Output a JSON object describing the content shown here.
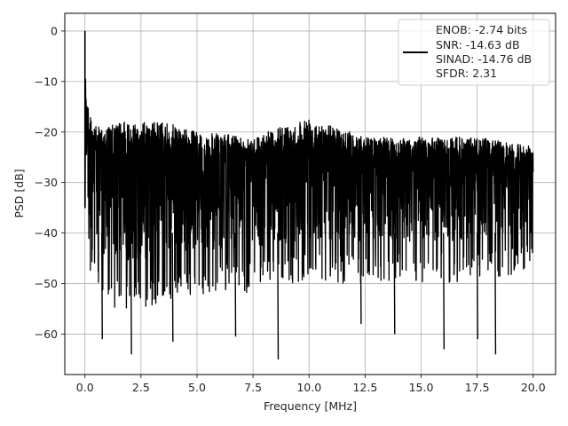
{
  "chart_data": {
    "type": "line",
    "title": "",
    "xlabel": "Frequency [MHz]",
    "ylabel": "PSD [dB]",
    "xlim": [
      -0.9,
      21.0
    ],
    "ylim": [
      -68,
      3.5
    ],
    "xticks": [
      0.0,
      2.5,
      5.0,
      7.5,
      10.0,
      12.5,
      15.0,
      17.5,
      20.0
    ],
    "xtick_labels": [
      "0.0",
      "2.5",
      "5.0",
      "7.5",
      "10.0",
      "12.5",
      "15.0",
      "17.5",
      "20.0"
    ],
    "yticks": [
      0,
      -10,
      -20,
      -30,
      -40,
      -50,
      -60
    ],
    "ytick_labels": [
      "0",
      "−10",
      "−20",
      "−30",
      "−40",
      "−50",
      "−60"
    ],
    "grid": true,
    "legend_position": "top-right",
    "legend_entries": [
      "ENOB: -2.74 bits",
      "SNR: -14.63 dB",
      "SINAD: -14.76 dB",
      "SFDR: 2.31"
    ],
    "series": [
      {
        "color": "#000000",
        "x_range": [
          0.0,
          20.0
        ],
        "peak": {
          "x": 0.0,
          "y": 0.0
        },
        "upper_envelope_approx": [
          [
            0.05,
            -10
          ],
          [
            0.2,
            -16
          ],
          [
            0.5,
            -19
          ],
          [
            1.0,
            -19
          ],
          [
            1.6,
            -18
          ],
          [
            2.5,
            -18
          ],
          [
            3.5,
            -18
          ],
          [
            5.0,
            -20
          ],
          [
            7.5,
            -21
          ],
          [
            10.0,
            -17
          ],
          [
            12.5,
            -21
          ],
          [
            15.0,
            -21
          ],
          [
            17.5,
            -21
          ],
          [
            20.0,
            -23
          ]
        ],
        "lower_envelope_approx": [
          [
            0.1,
            -45
          ],
          [
            0.5,
            -52
          ],
          [
            1.0,
            -55
          ],
          [
            2.5,
            -55
          ],
          [
            5.0,
            -52
          ],
          [
            7.5,
            -52
          ],
          [
            10.0,
            -50
          ],
          [
            12.5,
            -50
          ],
          [
            15.0,
            -50
          ],
          [
            17.5,
            -50
          ],
          [
            20.0,
            -48
          ]
        ],
        "notable_minima": [
          [
            0.75,
            -61
          ],
          [
            2.05,
            -64
          ],
          [
            3.9,
            -61.5
          ],
          [
            6.7,
            -60.5
          ],
          [
            8.6,
            -65
          ],
          [
            12.3,
            -58
          ],
          [
            13.8,
            -60
          ],
          [
            16.0,
            -63
          ],
          [
            17.5,
            -61
          ],
          [
            18.3,
            -64
          ]
        ]
      }
    ]
  }
}
